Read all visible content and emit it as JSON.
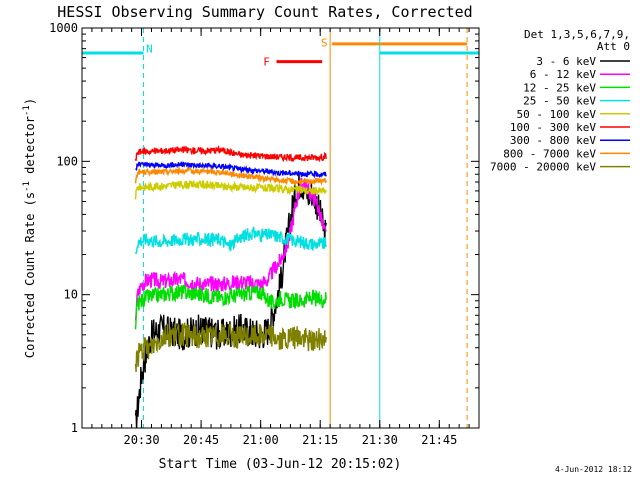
{
  "chart_data": {
    "type": "line",
    "title": "HESSI Observing Summary Count Rates, Corrected",
    "xlabel": "Start Time (03-Jun-12 20:15:02)",
    "ylabel": "Corrected Count Rate (s⁻¹ detector⁻¹)",
    "ylabel_parts": [
      "Corrected Count Rate (s",
      "-1",
      " detector",
      "-1",
      ")"
    ],
    "yscale": "log",
    "ylim": [
      1,
      1000
    ],
    "xlim_minutes_after_20_15": [
      0,
      100
    ],
    "x_ticks": [
      {
        "label": "20:30",
        "value": 15
      },
      {
        "label": "20:45",
        "value": 30
      },
      {
        "label": "21:00",
        "value": 45
      },
      {
        "label": "21:15",
        "value": 60
      },
      {
        "label": "21:30",
        "value": 75
      },
      {
        "label": "21:45",
        "value": 90
      }
    ],
    "y_ticks": [
      {
        "label": "1",
        "value": 1
      },
      {
        "label": "10",
        "value": 10
      },
      {
        "label": "100",
        "value": 100
      },
      {
        "label": "1000",
        "value": 1000
      }
    ],
    "legend_header": [
      "Det 1,3,5,6,7,9,",
      "Att 0"
    ],
    "legend_placement": "right",
    "footer_date": "4-Jun-2012 18:12",
    "series": [
      {
        "name": "3 - 6 keV",
        "color": "#000000",
        "points": [
          [
            13.5,
            1
          ],
          [
            14,
            1.4
          ],
          [
            15,
            2.5
          ],
          [
            16,
            3.5
          ],
          [
            17,
            4.5
          ],
          [
            18,
            5.2
          ],
          [
            20,
            5.5
          ],
          [
            25,
            5.0
          ],
          [
            30,
            5.5
          ],
          [
            35,
            5.0
          ],
          [
            40,
            5.5
          ],
          [
            45,
            5.0
          ],
          [
            47,
            5.5
          ],
          [
            48,
            7
          ],
          [
            50,
            12
          ],
          [
            51,
            20
          ],
          [
            52,
            30
          ],
          [
            53,
            45
          ],
          [
            54,
            60
          ],
          [
            55,
            70
          ],
          [
            56,
            65
          ],
          [
            57,
            55
          ],
          [
            58,
            60
          ],
          [
            59,
            50
          ],
          [
            60,
            40
          ],
          [
            61,
            30
          ],
          [
            61.5,
            28
          ]
        ]
      },
      {
        "name": "6 - 12 keV",
        "color": "#ff00ff",
        "points": [
          [
            13.5,
            7
          ],
          [
            14,
            10
          ],
          [
            15,
            12
          ],
          [
            17,
            13
          ],
          [
            20,
            12.5
          ],
          [
            25,
            13
          ],
          [
            30,
            12
          ],
          [
            35,
            12
          ],
          [
            40,
            12.5
          ],
          [
            45,
            12
          ],
          [
            47,
            13
          ],
          [
            48,
            15
          ],
          [
            50,
            18
          ],
          [
            52,
            25
          ],
          [
            53,
            35
          ],
          [
            54,
            50
          ],
          [
            55,
            65
          ],
          [
            56,
            70
          ],
          [
            57,
            60
          ],
          [
            58,
            55
          ],
          [
            59,
            50
          ],
          [
            60,
            40
          ],
          [
            61,
            30
          ],
          [
            61.5,
            28
          ]
        ]
      },
      {
        "name": "12 - 25 keV",
        "color": "#00dd00",
        "points": [
          [
            13.5,
            6
          ],
          [
            14,
            8.5
          ],
          [
            16,
            9.5
          ],
          [
            20,
            10
          ],
          [
            25,
            10.5
          ],
          [
            30,
            10
          ],
          [
            35,
            9.5
          ],
          [
            40,
            10
          ],
          [
            45,
            10.5
          ],
          [
            48,
            8.5
          ],
          [
            50,
            9.5
          ],
          [
            52,
            9
          ],
          [
            55,
            9
          ],
          [
            58,
            9.5
          ],
          [
            60,
            9
          ],
          [
            61.5,
            9.5
          ]
        ]
      },
      {
        "name": "25 - 50 keV",
        "color": "#00e0e0",
        "points": [
          [
            13.5,
            20
          ],
          [
            14,
            25
          ],
          [
            16,
            26
          ],
          [
            20,
            25
          ],
          [
            25,
            26
          ],
          [
            30,
            26
          ],
          [
            35,
            26
          ],
          [
            37,
            23
          ],
          [
            40,
            27
          ],
          [
            43,
            29
          ],
          [
            45,
            28
          ],
          [
            48,
            28
          ],
          [
            50,
            27
          ],
          [
            52,
            26
          ],
          [
            55,
            25
          ],
          [
            58,
            24
          ],
          [
            61.5,
            24
          ]
        ]
      },
      {
        "name": "50 - 100 keV",
        "color": "#cccc00",
        "points": [
          [
            13.5,
            55
          ],
          [
            14,
            64
          ],
          [
            20,
            65
          ],
          [
            25,
            67
          ],
          [
            30,
            67
          ],
          [
            35,
            65
          ],
          [
            40,
            64
          ],
          [
            45,
            63
          ],
          [
            50,
            62
          ],
          [
            55,
            61
          ],
          [
            58,
            60
          ],
          [
            61.5,
            60
          ]
        ]
      },
      {
        "name": "100 - 300 keV",
        "color": "#ff0000",
        "points": [
          [
            13.5,
            100
          ],
          [
            14,
            118
          ],
          [
            20,
            120
          ],
          [
            25,
            122
          ],
          [
            30,
            120
          ],
          [
            35,
            122
          ],
          [
            40,
            112
          ],
          [
            45,
            110
          ],
          [
            50,
            108
          ],
          [
            55,
            106
          ],
          [
            58,
            107
          ],
          [
            61.5,
            108
          ]
        ]
      },
      {
        "name": "300 - 800 keV",
        "color": "#0000ff",
        "points": [
          [
            13.5,
            85
          ],
          [
            14,
            95
          ],
          [
            20,
            93
          ],
          [
            25,
            95
          ],
          [
            30,
            93
          ],
          [
            35,
            92
          ],
          [
            40,
            87
          ],
          [
            45,
            85
          ],
          [
            50,
            82
          ],
          [
            55,
            81
          ],
          [
            58,
            80
          ],
          [
            61.5,
            80
          ]
        ]
      },
      {
        "name": "800 - 7000 keV",
        "color": "#ff8800",
        "points": [
          [
            13.5,
            70
          ],
          [
            14,
            83
          ],
          [
            20,
            83
          ],
          [
            25,
            85
          ],
          [
            30,
            84
          ],
          [
            35,
            83
          ],
          [
            40,
            79
          ],
          [
            45,
            75
          ],
          [
            50,
            72
          ],
          [
            55,
            70
          ],
          [
            58,
            71
          ],
          [
            61.5,
            72
          ]
        ]
      },
      {
        "name": "7000 - 20000 keV",
        "color": "#808000",
        "points": [
          [
            13.5,
            3
          ],
          [
            14,
            3.5
          ],
          [
            15,
            3.8
          ],
          [
            17,
            4
          ],
          [
            19,
            4.5
          ],
          [
            21,
            5
          ],
          [
            25,
            5
          ],
          [
            30,
            4.8
          ],
          [
            35,
            5
          ],
          [
            40,
            4.8
          ],
          [
            45,
            5
          ],
          [
            48,
            5
          ],
          [
            50,
            4.5
          ],
          [
            55,
            4.8
          ],
          [
            58,
            4.5
          ],
          [
            61.5,
            4.8
          ]
        ]
      }
    ],
    "orbit_flags": [
      {
        "label": "N",
        "color": "#00e0e0",
        "level": 650,
        "x_start": 0,
        "x_end": 15.5,
        "marker_x": 15.5
      },
      {
        "label": "N",
        "color": "#00e0e0",
        "level": 650,
        "x_start": 75,
        "x_end": 100,
        "marker_x": 100
      },
      {
        "label": "F",
        "color": "#ff0000",
        "level": 560,
        "x_start": 49,
        "x_end": 60.5,
        "marker_x": null
      },
      {
        "label": "S",
        "color": "#ff8800",
        "level": 760,
        "x_start": 63,
        "x_end": 97,
        "marker_x": 97
      }
    ],
    "flag_labels": [
      {
        "label": "N",
        "color": "#00e0e0",
        "x": 17,
        "level": 700
      },
      {
        "label": "F",
        "color": "#ff0000",
        "x": 46.5,
        "level": 560
      },
      {
        "label": "S",
        "color": "#ff8800",
        "x": 61,
        "level": 780
      }
    ],
    "vertical_lines": [
      {
        "x": 0,
        "color": "#00e0e0",
        "style": "solid"
      },
      {
        "x": 15.5,
        "color": "#00e0e0",
        "style": "dashed"
      },
      {
        "x": 62.5,
        "color": "#ff8800",
        "style": "solid"
      },
      {
        "x": 75,
        "color": "#00e0e0",
        "style": "solid"
      },
      {
        "x": 97,
        "color": "#ff8800",
        "style": "dashed"
      },
      {
        "x": 100,
        "color": "#00e0e0",
        "style": "dashed"
      }
    ],
    "grid": false
  }
}
